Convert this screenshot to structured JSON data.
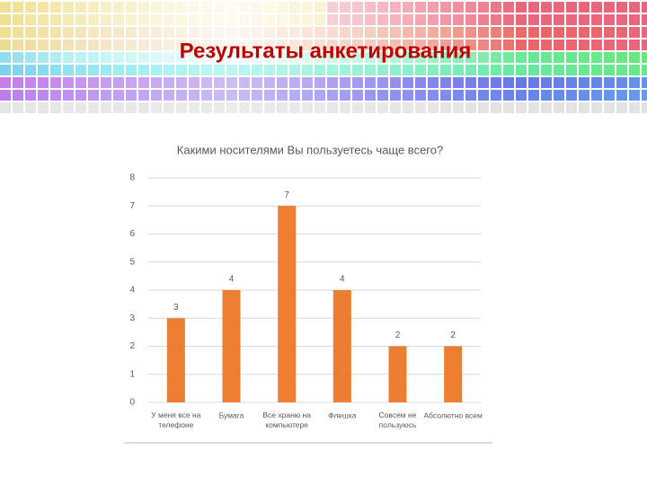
{
  "slide_title": "Результаты анкетирования",
  "chart_data": {
    "type": "bar",
    "title": "Какими носителями Вы пользуетесь чаще всего?",
    "categories": [
      "У меня все на\nтелефоне",
      "Бумага",
      "Все храню на\nкомпьютере",
      "Флешка",
      "Совсем не\nпользуюсь",
      "Абсолютно всем"
    ],
    "values": [
      3,
      4,
      7,
      4,
      2,
      2
    ],
    "color": "#ed7d31",
    "ylim": [
      0,
      8
    ],
    "yticks": [
      0,
      1,
      2,
      3,
      4,
      5,
      6,
      7,
      8
    ],
    "grid": true,
    "value_labels_shown": true
  }
}
